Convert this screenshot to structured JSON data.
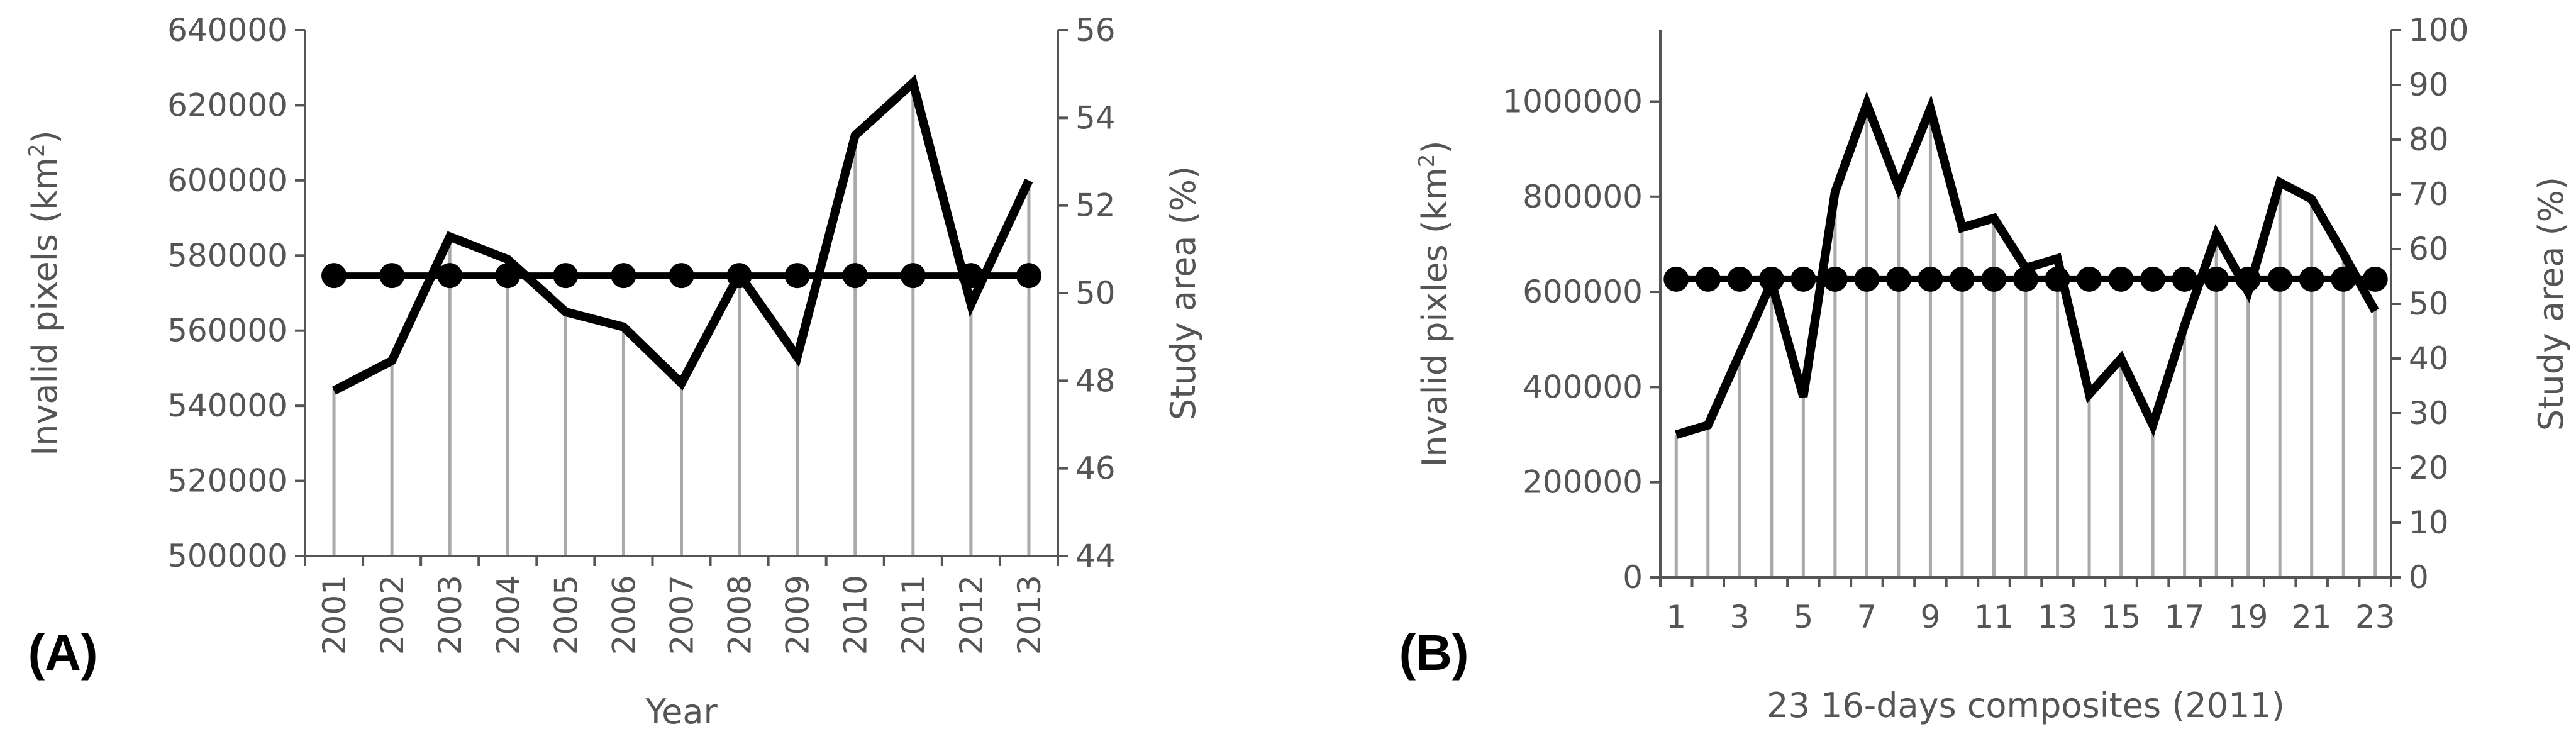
{
  "chart_data": [
    {
      "panel_label": "(A)",
      "type": "line",
      "xlabel": "Year",
      "categories": [
        "2001",
        "2002",
        "2003",
        "2004",
        "2005",
        "2006",
        "2007",
        "2008",
        "2009",
        "2010",
        "2011",
        "2012",
        "2013"
      ],
      "y_left": {
        "label": "Invalid pixels (km",
        "label_sup": "2",
        "label_end": ")",
        "ylim": [
          500000,
          640000
        ],
        "ticks": [
          500000,
          520000,
          540000,
          560000,
          580000,
          600000,
          620000,
          640000
        ]
      },
      "y_right": {
        "label": "Study area (%)",
        "ylim": [
          44,
          56
        ],
        "ticks": [
          44,
          46,
          48,
          50,
          52,
          54,
          56
        ]
      },
      "series": [
        {
          "axis": "left",
          "style": "line",
          "values": [
            544000,
            552000,
            585000,
            579000,
            565000,
            561000,
            546000,
            575000,
            553000,
            612000,
            626000,
            567000,
            600000
          ]
        },
        {
          "axis": "right",
          "style": "line-markers",
          "values": [
            50.4,
            50.4,
            50.4,
            50.4,
            50.4,
            50.4,
            50.4,
            50.4,
            50.4,
            50.4,
            50.4,
            50.4,
            50.4
          ]
        },
        {
          "axis": "right",
          "style": "drop-lines",
          "values": [
            47.8,
            48.4,
            51.3,
            50.8,
            49.6,
            49.2,
            47.9,
            50.4,
            48.5,
            53.6,
            54.8,
            49.7,
            52.5
          ]
        }
      ],
      "grid": false
    },
    {
      "panel_label": "(B)",
      "type": "line",
      "xlabel": "23 16-days composites (2011)",
      "x": [
        1,
        2,
        3,
        4,
        5,
        6,
        7,
        8,
        9,
        10,
        11,
        12,
        13,
        14,
        15,
        16,
        17,
        18,
        19,
        20,
        21,
        22,
        23
      ],
      "x_tick_labels": [
        "1",
        "3",
        "5",
        "7",
        "9",
        "11",
        "13",
        "15",
        "17",
        "19",
        "21",
        "23"
      ],
      "y_left": {
        "label": "Invalid pixles (km",
        "label_sup": "2",
        "label_end": ")",
        "ylim": [
          0,
          1150000
        ],
        "ticks": [
          0,
          200000,
          400000,
          600000,
          800000,
          1000000
        ]
      },
      "y_right": {
        "label": "Study area (%)",
        "ylim": [
          0,
          100
        ],
        "ticks": [
          0,
          10,
          20,
          30,
          40,
          50,
          60,
          70,
          80,
          90,
          100
        ]
      },
      "series": [
        {
          "axis": "left",
          "style": "line",
          "values": [
            300000,
            320000,
            470000,
            620000,
            380000,
            810000,
            995000,
            820000,
            985000,
            735000,
            755000,
            650000,
            670000,
            385000,
            460000,
            320000,
            530000,
            720000,
            600000,
            830000,
            795000,
            680000,
            560000
          ]
        },
        {
          "axis": "right",
          "style": "line-markers",
          "values": [
            54.5,
            54.5,
            54.5,
            54.5,
            54.5,
            54.5,
            54.5,
            54.5,
            54.5,
            54.5,
            54.5,
            54.5,
            54.5,
            54.5,
            54.5,
            54.5,
            54.5,
            54.5,
            54.5,
            54.5,
            54.5,
            54.5,
            54.5
          ]
        },
        {
          "axis": "right",
          "style": "drop-lines",
          "values": [
            26,
            28,
            40,
            55,
            33,
            71,
            87,
            72,
            86,
            64,
            66,
            57,
            59,
            34,
            40,
            28,
            46,
            63,
            53,
            73,
            70,
            59,
            49
          ]
        }
      ],
      "grid": false
    }
  ]
}
